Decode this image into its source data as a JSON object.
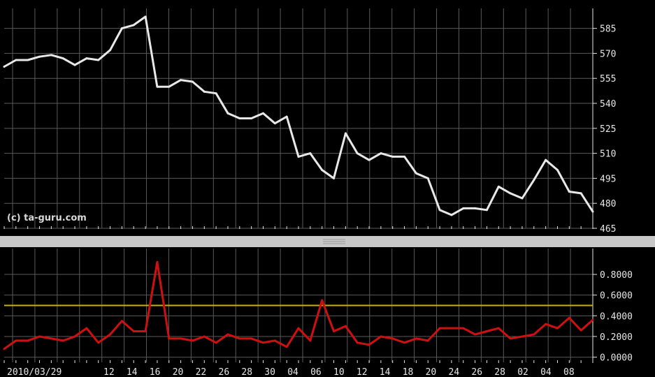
{
  "watermark": "(c) ta-guru.com",
  "colors": {
    "background": "#000000",
    "grid": "#5a5a5a",
    "price_line": "#e8e8e8",
    "indicator_line": "#d01010",
    "threshold_line": "#c8b400",
    "splitter": "#c8c8c8",
    "text": "#e6e6e6"
  },
  "chart_data": [
    {
      "type": "line",
      "grid": true,
      "ylim": [
        465,
        597
      ],
      "yticks": [
        465,
        480,
        495,
        510,
        525,
        540,
        555,
        570,
        585
      ],
      "ytick_labels": [
        "465",
        "480",
        "495",
        "510",
        "525",
        "540",
        "555",
        "570",
        "585"
      ],
      "x_date_labels": [
        "2010/03/29",
        "12",
        "14",
        "16",
        "20",
        "22",
        "26",
        "28",
        "30",
        "04",
        "06",
        "10",
        "12",
        "14",
        "18",
        "20",
        "24",
        "26",
        "28",
        "02",
        "04",
        "08"
      ],
      "series": [
        {
          "values": [
            562,
            566,
            566,
            568,
            569,
            567,
            563,
            567,
            566,
            572,
            585,
            587,
            592,
            550,
            550,
            554,
            553,
            547,
            546,
            534,
            531,
            531,
            534,
            528,
            532,
            508,
            510,
            500,
            495,
            522,
            510,
            506,
            510,
            508,
            508,
            498,
            495,
            476,
            473,
            477,
            477,
            476,
            490,
            486,
            483,
            494,
            506,
            500,
            487,
            486,
            475
          ]
        }
      ]
    },
    {
      "type": "line",
      "grid": true,
      "ylim": [
        -0.05,
        1.05
      ],
      "yticks": [
        0.0,
        0.2,
        0.4,
        0.6,
        0.8
      ],
      "ytick_labels": [
        "0.0000",
        "0.2000",
        "0.4000",
        "0.6000",
        "0.8000"
      ],
      "threshold": 0.5,
      "series": [
        {
          "values": [
            0.08,
            0.16,
            0.16,
            0.2,
            0.18,
            0.16,
            0.2,
            0.28,
            0.14,
            0.22,
            0.35,
            0.25,
            0.25,
            0.92,
            0.18,
            0.18,
            0.16,
            0.2,
            0.14,
            0.22,
            0.18,
            0.18,
            0.14,
            0.16,
            0.1,
            0.28,
            0.16,
            0.55,
            0.25,
            0.3,
            0.14,
            0.12,
            0.2,
            0.18,
            0.14,
            0.18,
            0.16,
            0.28,
            0.28,
            0.28,
            0.22,
            0.25,
            0.28,
            0.18,
            0.2,
            0.22,
            0.32,
            0.28,
            0.38,
            0.26,
            0.36
          ]
        }
      ]
    }
  ]
}
